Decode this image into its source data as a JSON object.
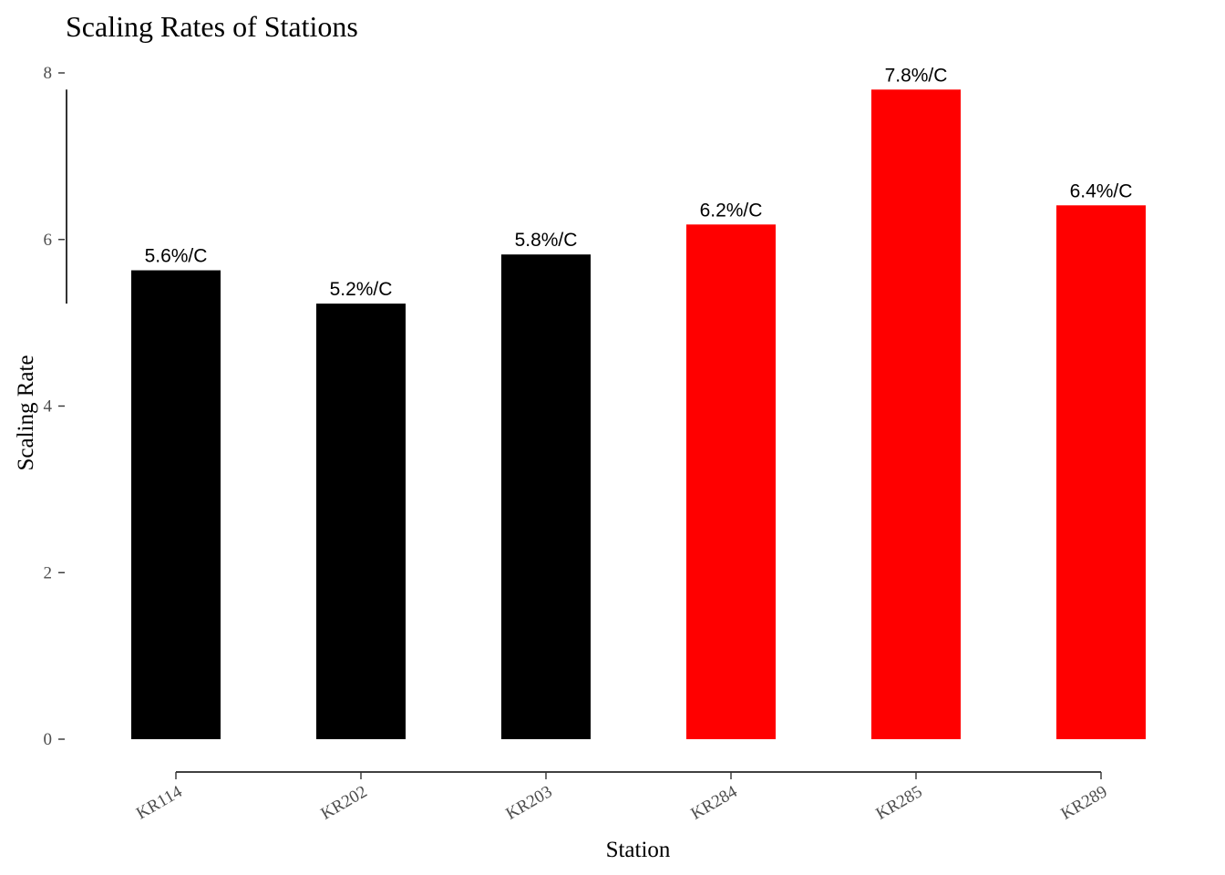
{
  "chart_data": {
    "type": "bar",
    "title": "Scaling Rates of Stations",
    "xlabel": "Station",
    "ylabel": "Scaling Rate",
    "categories": [
      "KR114",
      "KR202",
      "KR203",
      "KR284",
      "KR285",
      "KR289"
    ],
    "values": [
      5.63,
      5.23,
      5.82,
      6.18,
      7.8,
      6.41
    ],
    "data_labels": [
      "5.6%/C",
      "5.2%/C",
      "5.8%/C",
      "6.2%/C",
      "7.8%/C",
      "6.4%/C"
    ],
    "bar_colors": [
      "#000000",
      "#000000",
      "#000000",
      "#ff0000",
      "#ff0000",
      "#ff0000"
    ],
    "yticks": [
      0,
      2,
      4,
      6,
      8
    ],
    "ytick_labels": [
      "0",
      "2",
      "4",
      "6",
      "8"
    ],
    "ylim": [
      0,
      8
    ],
    "grid": false,
    "legend": "none"
  }
}
